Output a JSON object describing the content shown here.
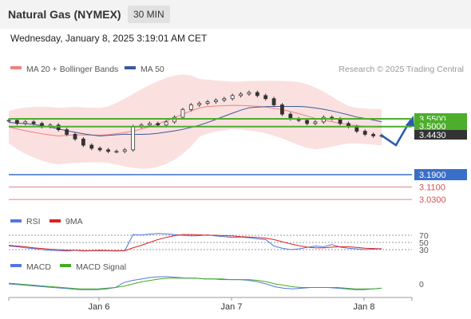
{
  "header": {
    "title": "Natural Gas (NYMEX)",
    "timeframe": "30 MIN"
  },
  "datetime": "Wednesday, January 8, 2025 3:19:01 AM CET",
  "credit": "Research © 2025 Trading Central",
  "colors": {
    "bollinger": "#f08080",
    "ma50": "#3a5a9a",
    "support_resistance": "#4cae2c",
    "pivot": "#3a6fc9",
    "target": "#d9534f",
    "rsi": "#5577dd",
    "rsi_ma": "#dd2222",
    "macd": "#5577dd",
    "macd_signal": "#44aa22",
    "price_tag": "#333333"
  },
  "chart_data": [
    {
      "type": "candlestick",
      "panel": "price",
      "legend": [
        {
          "name": "MA 20 + Bollinger Bands"
        },
        {
          "name": "MA 50"
        }
      ],
      "x_ticks": [
        "Jan 6",
        "Jan 7",
        "Jan 8"
      ],
      "y_range": [
        3.0,
        3.6
      ],
      "levels": [
        {
          "label": "3.5500",
          "value": 3.55,
          "kind": "resistance"
        },
        {
          "label": "3.5000",
          "value": 3.5,
          "kind": "resistance"
        },
        {
          "label": "3.4430",
          "value": 3.443,
          "kind": "last_price"
        },
        {
          "label": "3.1900",
          "value": 3.19,
          "kind": "pivot"
        },
        {
          "label": "3.1100",
          "value": 3.11,
          "kind": "target"
        },
        {
          "label": "3.0300",
          "value": 3.03,
          "kind": "target"
        }
      ],
      "close_series": [
        3.54,
        3.52,
        3.53,
        3.52,
        3.5,
        3.51,
        3.48,
        3.45,
        3.42,
        3.38,
        3.36,
        3.35,
        3.34,
        3.34,
        3.35,
        3.5,
        3.51,
        3.52,
        3.51,
        3.53,
        3.56,
        3.61,
        3.64,
        3.65,
        3.66,
        3.67,
        3.68,
        3.7,
        3.71,
        3.72,
        3.7,
        3.68,
        3.64,
        3.58,
        3.55,
        3.54,
        3.52,
        3.53,
        3.56,
        3.55,
        3.52,
        3.5,
        3.47,
        3.45,
        3.44,
        3.443
      ],
      "projection": [
        3.443,
        3.38,
        3.54
      ]
    },
    {
      "type": "line",
      "panel": "rsi",
      "legend": [
        {
          "name": "RSI"
        },
        {
          "name": "9MA"
        }
      ],
      "y_ticks": [
        70,
        50,
        30
      ],
      "series": [
        {
          "name": "RSI",
          "values": [
            40,
            38,
            35,
            33,
            30,
            28,
            27,
            26,
            28,
            26,
            27,
            28,
            27,
            26,
            27,
            72,
            71,
            73,
            75,
            74,
            72,
            70,
            68,
            69,
            71,
            68,
            66,
            64,
            65,
            63,
            60,
            58,
            40,
            34,
            30,
            32,
            36,
            40,
            38,
            44,
            37,
            34,
            32,
            30,
            31,
            33
          ]
        },
        {
          "name": "9MA",
          "values": [
            42,
            40,
            38,
            35,
            33,
            31,
            30,
            28,
            28,
            27,
            27,
            27,
            27,
            27,
            27,
            35,
            42,
            50,
            58,
            64,
            69,
            72,
            72,
            71,
            70,
            70,
            69,
            68,
            66,
            65,
            64,
            62,
            58,
            52,
            46,
            41,
            37,
            35,
            35,
            37,
            38,
            38,
            36,
            34,
            33,
            32
          ]
        }
      ]
    },
    {
      "type": "line",
      "panel": "macd",
      "legend": [
        {
          "name": "MACD"
        },
        {
          "name": "MACD Signal"
        }
      ],
      "y_ticks": [
        0
      ],
      "series": [
        {
          "name": "MACD",
          "values": [
            0.0,
            -0.01,
            -0.02,
            -0.03,
            -0.04,
            -0.05,
            -0.06,
            -0.07,
            -0.08,
            -0.08,
            -0.08,
            -0.07,
            -0.05,
            0.02,
            0.05,
            0.07,
            0.09,
            0.1,
            0.1,
            0.09,
            0.08,
            0.08,
            0.07,
            0.07,
            0.06,
            0.06,
            0.06,
            0.05,
            0.03,
            0.0,
            -0.04,
            -0.06,
            -0.07,
            -0.06,
            -0.05,
            -0.05,
            -0.05,
            -0.06,
            -0.07,
            -0.08,
            -0.08,
            -0.07,
            -0.06
          ]
        },
        {
          "name": "MACD Signal",
          "values": [
            0.01,
            0.0,
            -0.01,
            -0.02,
            -0.03,
            -0.04,
            -0.05,
            -0.06,
            -0.07,
            -0.07,
            -0.07,
            -0.06,
            -0.05,
            -0.03,
            0.0,
            0.03,
            0.05,
            0.07,
            0.08,
            0.08,
            0.08,
            0.08,
            0.07,
            0.07,
            0.07,
            0.06,
            0.06,
            0.06,
            0.05,
            0.03,
            0.0,
            -0.02,
            -0.04,
            -0.05,
            -0.05,
            -0.05,
            -0.05,
            -0.05,
            -0.06,
            -0.07,
            -0.07,
            -0.07,
            -0.06
          ]
        }
      ]
    }
  ]
}
